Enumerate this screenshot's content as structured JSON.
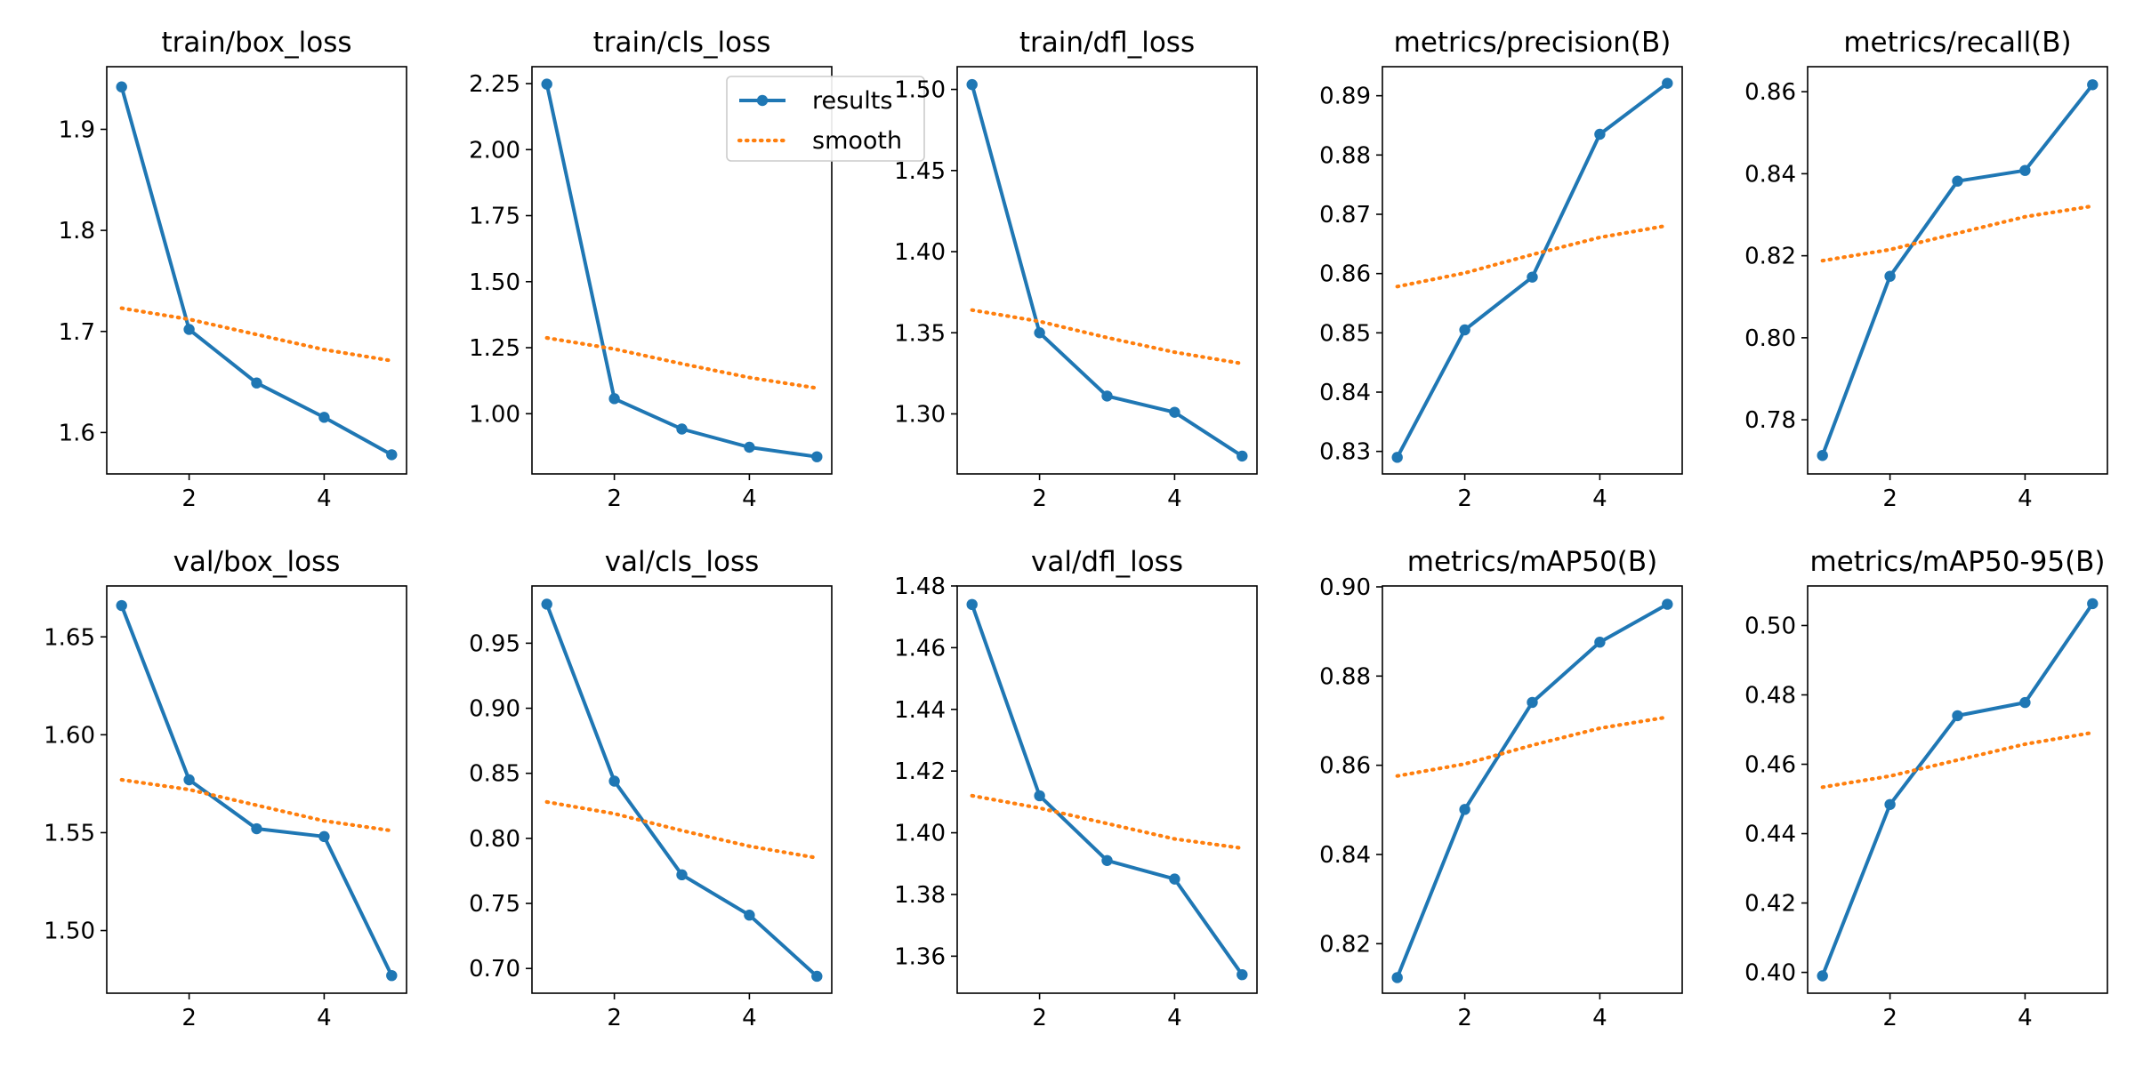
{
  "colors": {
    "results": "#1f77b4",
    "smooth": "#ff7f0e",
    "axes": "#000000",
    "background": "#ffffff"
  },
  "legend": {
    "placement": "upper-right",
    "panel": 1,
    "entries": [
      "results",
      "smooth"
    ]
  },
  "chart_data": [
    {
      "type": "line",
      "title": "train/box_loss",
      "xlabel": "",
      "ylabel": "",
      "x": [
        1,
        2,
        3,
        4,
        5
      ],
      "xticks": [
        2,
        4
      ],
      "xlim": [
        0.78,
        5.22
      ],
      "yticks": [
        "1.6",
        "1.7",
        "1.8",
        "1.9"
      ],
      "ylim": [
        1.559,
        1.962
      ],
      "series": [
        {
          "name": "results",
          "values": [
            1.942,
            1.702,
            1.649,
            1.615,
            1.578
          ]
        },
        {
          "name": "smooth",
          "values": [
            1.723,
            1.712,
            1.697,
            1.682,
            1.671
          ]
        }
      ]
    },
    {
      "type": "line",
      "title": "train/cls_loss",
      "xlabel": "",
      "ylabel": "",
      "x": [
        1,
        2,
        3,
        4,
        5
      ],
      "xticks": [
        2,
        4
      ],
      "xlim": [
        0.78,
        5.22
      ],
      "yticks": [
        "1.00",
        "1.25",
        "1.50",
        "1.75",
        "2.00",
        "2.25"
      ],
      "ylim": [
        0.772,
        2.314
      ],
      "series": [
        {
          "name": "results",
          "values": [
            2.248,
            1.057,
            0.942,
            0.873,
            0.837
          ]
        },
        {
          "name": "smooth",
          "values": [
            1.287,
            1.245,
            1.189,
            1.137,
            1.097
          ]
        }
      ]
    },
    {
      "type": "line",
      "title": "train/dfl_loss",
      "xlabel": "",
      "ylabel": "",
      "x": [
        1,
        2,
        3,
        4,
        5
      ],
      "xticks": [
        2,
        4
      ],
      "xlim": [
        0.78,
        5.22
      ],
      "yticks": [
        "1.30",
        "1.35",
        "1.40",
        "1.45",
        "1.50"
      ],
      "ylim": [
        1.263,
        1.514
      ],
      "series": [
        {
          "name": "results",
          "values": [
            1.503,
            1.35,
            1.311,
            1.301,
            1.274
          ]
        },
        {
          "name": "smooth",
          "values": [
            1.364,
            1.357,
            1.347,
            1.338,
            1.331
          ]
        }
      ]
    },
    {
      "type": "line",
      "title": "metrics/precision(B)",
      "xlabel": "",
      "ylabel": "",
      "x": [
        1,
        2,
        3,
        4,
        5
      ],
      "xticks": [
        2,
        4
      ],
      "xlim": [
        0.78,
        5.22
      ],
      "yticks": [
        "0.83",
        "0.84",
        "0.85",
        "0.86",
        "0.87",
        "0.88",
        "0.89"
      ],
      "ylim": [
        0.8262,
        0.8949
      ],
      "series": [
        {
          "name": "results",
          "values": [
            0.829,
            0.8505,
            0.8594,
            0.8835,
            0.8921
          ]
        },
        {
          "name": "smooth",
          "values": [
            0.8578,
            0.8601,
            0.8632,
            0.8661,
            0.8681
          ]
        }
      ]
    },
    {
      "type": "line",
      "title": "metrics/recall(B)",
      "xlabel": "",
      "ylabel": "",
      "x": [
        1,
        2,
        3,
        4,
        5
      ],
      "xticks": [
        2,
        4
      ],
      "xlim": [
        0.78,
        5.22
      ],
      "yticks": [
        "0.78",
        "0.80",
        "0.82",
        "0.84",
        "0.86"
      ],
      "ylim": [
        0.7668,
        0.8661
      ],
      "series": [
        {
          "name": "results",
          "values": [
            0.7713,
            0.815,
            0.8382,
            0.8408,
            0.8617
          ]
        },
        {
          "name": "smooth",
          "values": [
            0.8188,
            0.8215,
            0.8255,
            0.8295,
            0.8321
          ]
        }
      ]
    },
    {
      "type": "line",
      "title": "val/box_loss",
      "xlabel": "",
      "ylabel": "",
      "x": [
        1,
        2,
        3,
        4,
        5
      ],
      "xticks": [
        2,
        4
      ],
      "xlim": [
        0.78,
        5.22
      ],
      "yticks": [
        "1.50",
        "1.55",
        "1.60",
        "1.65"
      ],
      "ylim": [
        1.468,
        1.676
      ],
      "series": [
        {
          "name": "results",
          "values": [
            1.666,
            1.577,
            1.552,
            1.548,
            1.477
          ]
        },
        {
          "name": "smooth",
          "values": [
            1.577,
            1.572,
            1.564,
            1.556,
            1.551
          ]
        }
      ]
    },
    {
      "type": "line",
      "title": "val/cls_loss",
      "xlabel": "",
      "ylabel": "",
      "x": [
        1,
        2,
        3,
        4,
        5
      ],
      "xticks": [
        2,
        4
      ],
      "xlim": [
        0.78,
        5.22
      ],
      "yticks": [
        "0.70",
        "0.75",
        "0.80",
        "0.85",
        "0.90",
        "0.95"
      ],
      "ylim": [
        0.681,
        0.994
      ],
      "series": [
        {
          "name": "results",
          "values": [
            0.98,
            0.844,
            0.772,
            0.741,
            0.694
          ]
        },
        {
          "name": "smooth",
          "values": [
            0.828,
            0.819,
            0.806,
            0.794,
            0.785
          ]
        }
      ]
    },
    {
      "type": "line",
      "title": "val/dfl_loss",
      "xlabel": "",
      "ylabel": "",
      "x": [
        1,
        2,
        3,
        4,
        5
      ],
      "xticks": [
        2,
        4
      ],
      "xlim": [
        0.78,
        5.22
      ],
      "yticks": [
        "1.36",
        "1.38",
        "1.40",
        "1.42",
        "1.44",
        "1.46",
        "1.48"
      ],
      "ylim": [
        1.348,
        1.48
      ],
      "series": [
        {
          "name": "results",
          "values": [
            1.474,
            1.412,
            1.391,
            1.385,
            1.354
          ]
        },
        {
          "name": "smooth",
          "values": [
            1.412,
            1.408,
            1.403,
            1.398,
            1.395
          ]
        }
      ]
    },
    {
      "type": "line",
      "title": "metrics/mAP50(B)",
      "xlabel": "",
      "ylabel": "",
      "x": [
        1,
        2,
        3,
        4,
        5
      ],
      "xticks": [
        2,
        4
      ],
      "xlim": [
        0.78,
        5.22
      ],
      "yticks": [
        "0.82",
        "0.84",
        "0.86",
        "0.88",
        "0.90"
      ],
      "ylim": [
        0.8089,
        0.9002
      ],
      "series": [
        {
          "name": "results",
          "values": [
            0.8124,
            0.8501,
            0.8741,
            0.8876,
            0.8961
          ]
        },
        {
          "name": "smooth",
          "values": [
            0.8576,
            0.8603,
            0.8645,
            0.8683,
            0.8708
          ]
        }
      ]
    },
    {
      "type": "line",
      "title": "metrics/mAP50-95(B)",
      "xlabel": "",
      "ylabel": "",
      "x": [
        1,
        2,
        3,
        4,
        5
      ],
      "xticks": [
        2,
        4
      ],
      "xlim": [
        0.78,
        5.22
      ],
      "yticks": [
        "0.40",
        "0.42",
        "0.44",
        "0.46",
        "0.48",
        "0.50"
      ],
      "ylim": [
        0.394,
        0.5114
      ],
      "series": [
        {
          "name": "results",
          "values": [
            0.399,
            0.4484,
            0.474,
            0.4778,
            0.5063
          ]
        },
        {
          "name": "smooth",
          "values": [
            0.4534,
            0.4566,
            0.4612,
            0.4658,
            0.4691
          ]
        }
      ]
    }
  ]
}
